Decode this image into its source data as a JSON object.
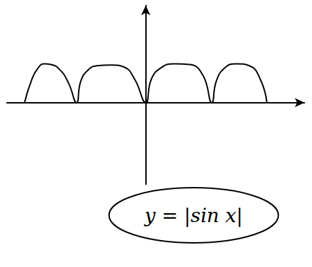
{
  "chart_data": {
    "type": "line",
    "annotation": "y = |sin x|",
    "x": [
      -5.5,
      -5.2,
      -4.9,
      -4.6,
      -4.3,
      -3.9,
      -3.5,
      -3.14,
      -2.95,
      -2.6,
      -2.2,
      -1.6,
      -1.0,
      -0.5,
      0,
      0.25,
      0.7,
      1.3,
      2.0,
      2.6,
      3.0,
      3.2,
      3.6,
      4.1,
      4.7,
      5.2,
      5.5
    ],
    "values": [
      0,
      0.55,
      0.88,
      1.0,
      0.98,
      0.85,
      0.5,
      0,
      0.55,
      0.85,
      0.95,
      0.97,
      0.92,
      0.6,
      0,
      0.6,
      0.9,
      1.0,
      0.98,
      0.7,
      0,
      0.55,
      0.9,
      1.0,
      0.95,
      0.6,
      0
    ],
    "color": "#000000",
    "xlim": [
      -6.3,
      7.2
    ],
    "ylim": [
      -2.1,
      2.5
    ],
    "tick_labels": false,
    "grid": false,
    "marker": "none",
    "line_style": "solid"
  }
}
